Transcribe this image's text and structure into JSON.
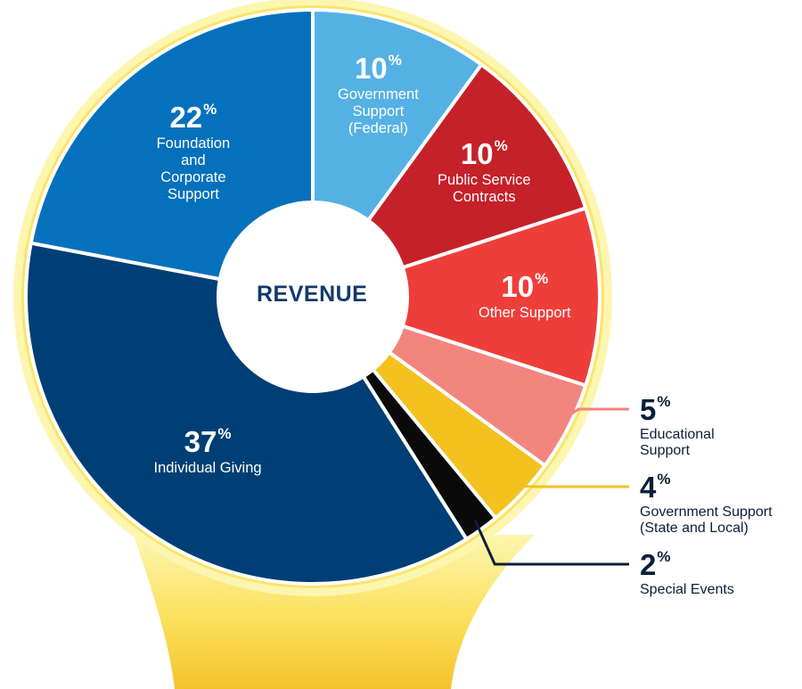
{
  "chart_data": {
    "type": "pie",
    "title": "REVENUE",
    "slices": [
      {
        "label": "Government Support (Federal)",
        "lines": [
          "Government",
          "Support",
          "(Federal)"
        ],
        "value": 10,
        "color": "#55b1e4",
        "label_pos": "inside"
      },
      {
        "label": "Public Service Contracts",
        "lines": [
          "Public Service",
          "Contracts"
        ],
        "value": 10,
        "color": "#c52129",
        "label_pos": "inside"
      },
      {
        "label": "Other Support",
        "lines": [
          "Other Support"
        ],
        "value": 10,
        "color": "#ee3e3a",
        "label_pos": "inside"
      },
      {
        "label": "Educational Support",
        "lines": [
          "Educational",
          "Support"
        ],
        "value": 5,
        "color": "#f3857f",
        "label_pos": "outside"
      },
      {
        "label": "Government Support (State and Local)",
        "lines": [
          "Government Support",
          "(State and Local)"
        ],
        "value": 4,
        "color": "#f3c21f",
        "label_pos": "outside"
      },
      {
        "label": "Special Events",
        "lines": [
          "Special Events"
        ],
        "value": 2,
        "color": "#0a0a0a",
        "label_pos": "outside"
      },
      {
        "label": "Individual Giving",
        "lines": [
          "Individual Giving"
        ],
        "value": 37,
        "color": "#003f75",
        "label_pos": "inside"
      },
      {
        "label": "Foundation and Corporate Support",
        "lines": [
          "Foundation",
          "and",
          "Corporate",
          "Support"
        ],
        "value": 22,
        "color": "#0571bc",
        "label_pos": "inside"
      }
    ],
    "pct_symbol": "%",
    "colors": {
      "ring_light": "#fdf6b0",
      "ring_mid": "#fbe46a",
      "base_gold": "#f5c22a",
      "center_text": "#12396b"
    }
  }
}
